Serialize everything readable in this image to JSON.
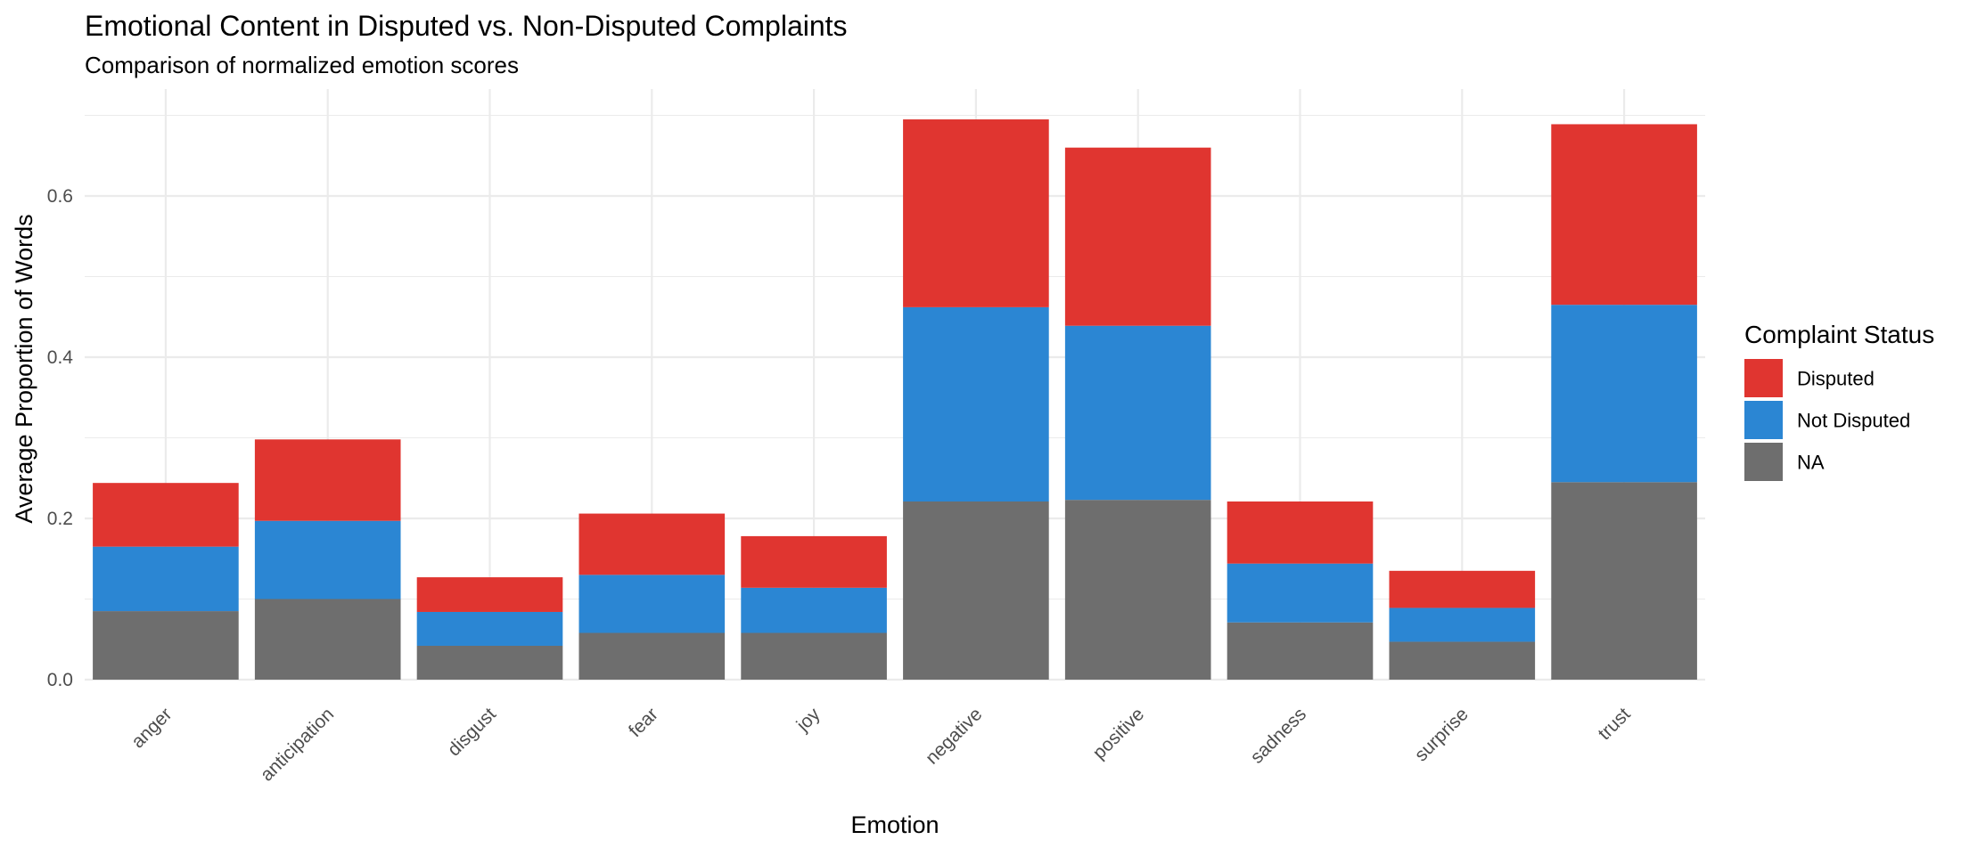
{
  "chart_data": {
    "type": "bar",
    "stacked": true,
    "title": "Emotional Content in Disputed vs. Non-Disputed Complaints",
    "subtitle": "Comparison of normalized emotion scores",
    "xlabel": "Emotion",
    "ylabel": "Average Proportion of Words",
    "ylim": [
      0,
      0.73
    ],
    "yticks": [
      "0.0",
      "0.2",
      "0.4",
      "0.6"
    ],
    "grid": true,
    "categories": [
      "anger",
      "anticipation",
      "disgust",
      "fear",
      "joy",
      "negative",
      "positive",
      "sadness",
      "surprise",
      "trust"
    ],
    "series": [
      {
        "name": "NA",
        "color": "#6E6E6E",
        "values": [
          0.085,
          0.1,
          0.042,
          0.058,
          0.058,
          0.221,
          0.223,
          0.071,
          0.047,
          0.245
        ]
      },
      {
        "name": "Not Disputed",
        "color": "#2B86D3",
        "values": [
          0.08,
          0.097,
          0.042,
          0.072,
          0.056,
          0.241,
          0.216,
          0.073,
          0.042,
          0.22
        ]
      },
      {
        "name": "Disputed",
        "color": "#E03530",
        "values": [
          0.079,
          0.101,
          0.043,
          0.076,
          0.064,
          0.233,
          0.221,
          0.077,
          0.046,
          0.224
        ]
      }
    ],
    "legend": {
      "title": "Complaint Status",
      "position": "right",
      "entries": [
        {
          "label": "Disputed",
          "color": "#E03530"
        },
        {
          "label": "Not Disputed",
          "color": "#2B86D3"
        },
        {
          "label": "NA",
          "color": "#6E6E6E"
        }
      ]
    }
  }
}
